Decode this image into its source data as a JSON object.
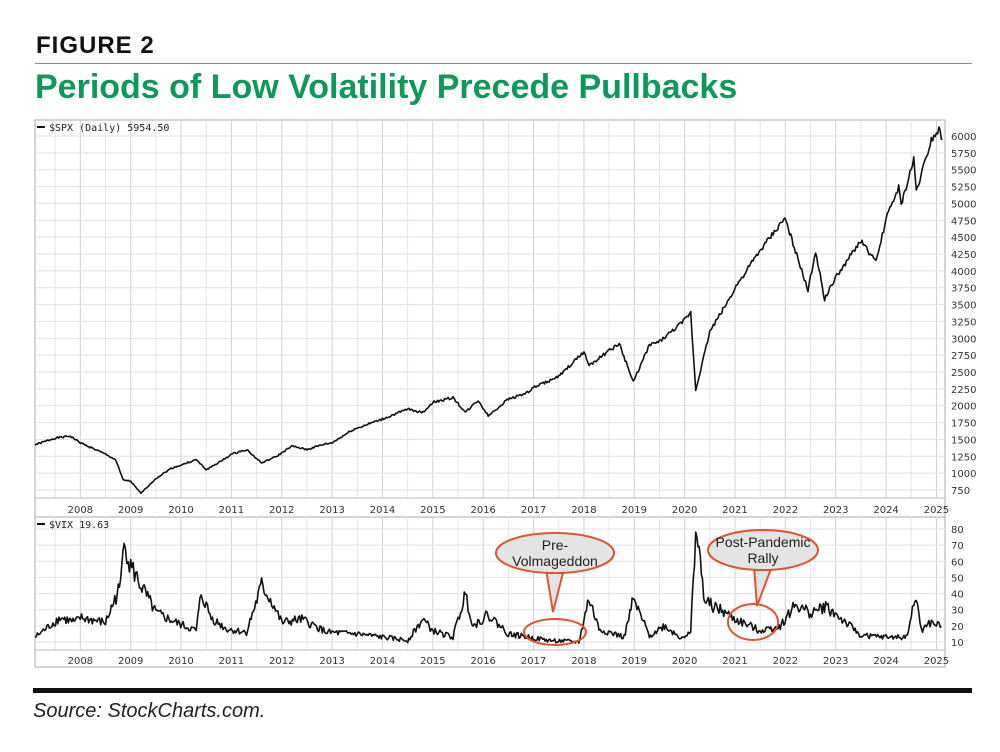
{
  "header": {
    "figure": "FIGURE 2",
    "title": "Periods of Low Volatility Precede Pullbacks"
  },
  "source": "Source: StockCharts.com.",
  "chart_data": [
    {
      "type": "line",
      "legend": "$SPX (Daily) 5954.50",
      "x_ticks": [
        "2008",
        "2009",
        "2010",
        "2011",
        "2012",
        "2013",
        "2014",
        "2015",
        "2016",
        "2017",
        "2018",
        "2019",
        "2020",
        "2021",
        "2022",
        "2023",
        "2024",
        "2025"
      ],
      "y_ticks": [
        750,
        1000,
        1250,
        1500,
        1750,
        2000,
        2250,
        2500,
        2750,
        3000,
        3250,
        3500,
        3750,
        4000,
        4250,
        4500,
        4750,
        5000,
        5250,
        5500,
        5750,
        6000
      ],
      "xlim": [
        2007.1,
        2025.17
      ],
      "ylim": [
        600,
        6200
      ],
      "grid": true,
      "line_color": "#111111",
      "points": [
        [
          2007.1,
          1420
        ],
        [
          2007.5,
          1520
        ],
        [
          2007.8,
          1550
        ],
        [
          2008.0,
          1450
        ],
        [
          2008.3,
          1350
        ],
        [
          2008.5,
          1280
        ],
        [
          2008.7,
          1200
        ],
        [
          2008.85,
          900
        ],
        [
          2009.0,
          880
        ],
        [
          2009.2,
          700
        ],
        [
          2009.5,
          920
        ],
        [
          2009.8,
          1070
        ],
        [
          2010.0,
          1120
        ],
        [
          2010.3,
          1200
        ],
        [
          2010.5,
          1050
        ],
        [
          2010.8,
          1180
        ],
        [
          2011.0,
          1280
        ],
        [
          2011.3,
          1350
        ],
        [
          2011.6,
          1150
        ],
        [
          2011.9,
          1250
        ],
        [
          2012.2,
          1400
        ],
        [
          2012.5,
          1350
        ],
        [
          2012.8,
          1420
        ],
        [
          2013.0,
          1450
        ],
        [
          2013.4,
          1640
        ],
        [
          2013.8,
          1750
        ],
        [
          2014.0,
          1800
        ],
        [
          2014.5,
          1950
        ],
        [
          2014.8,
          1900
        ],
        [
          2015.0,
          2050
        ],
        [
          2015.4,
          2120
        ],
        [
          2015.65,
          1900
        ],
        [
          2015.9,
          2080
        ],
        [
          2016.1,
          1850
        ],
        [
          2016.5,
          2100
        ],
        [
          2016.9,
          2200
        ],
        [
          2017.0,
          2270
        ],
        [
          2017.5,
          2430
        ],
        [
          2018.0,
          2800
        ],
        [
          2018.1,
          2600
        ],
        [
          2018.7,
          2920
        ],
        [
          2018.98,
          2350
        ],
        [
          2019.3,
          2900
        ],
        [
          2019.5,
          2950
        ],
        [
          2019.95,
          3230
        ],
        [
          2020.12,
          3380
        ],
        [
          2020.22,
          2230
        ],
        [
          2020.5,
          3100
        ],
        [
          2020.9,
          3600
        ],
        [
          2021.0,
          3750
        ],
        [
          2021.5,
          4300
        ],
        [
          2021.99,
          4780
        ],
        [
          2022.2,
          4300
        ],
        [
          2022.45,
          3700
        ],
        [
          2022.6,
          4300
        ],
        [
          2022.78,
          3580
        ],
        [
          2023.0,
          3900
        ],
        [
          2023.5,
          4450
        ],
        [
          2023.8,
          4120
        ],
        [
          2024.0,
          4770
        ],
        [
          2024.25,
          5250
        ],
        [
          2024.3,
          4970
        ],
        [
          2024.55,
          5650
        ],
        [
          2024.6,
          5180
        ],
        [
          2024.9,
          5950
        ],
        [
          2025.05,
          6100
        ],
        [
          2025.12,
          5954.5
        ]
      ]
    },
    {
      "type": "line",
      "legend": "$VIX 19.63",
      "x_ticks": [
        "2008",
        "2009",
        "2010",
        "2011",
        "2012",
        "2013",
        "2014",
        "2015",
        "2016",
        "2017",
        "2018",
        "2019",
        "2020",
        "2021",
        "2022",
        "2023",
        "2024",
        "2025"
      ],
      "y_ticks": [
        10,
        20,
        30,
        40,
        50,
        60,
        70,
        80
      ],
      "xlim": [
        2007.1,
        2025.17
      ],
      "ylim": [
        5,
        85
      ],
      "grid": true,
      "line_color": "#111111",
      "points": [
        [
          2007.1,
          13
        ],
        [
          2007.6,
          25
        ],
        [
          2007.9,
          22
        ],
        [
          2008.0,
          25
        ],
        [
          2008.5,
          22
        ],
        [
          2008.8,
          45
        ],
        [
          2008.87,
          80
        ],
        [
          2008.95,
          60
        ],
        [
          2009.2,
          45
        ],
        [
          2009.5,
          28
        ],
        [
          2009.9,
          22
        ],
        [
          2010.3,
          17
        ],
        [
          2010.4,
          40
        ],
        [
          2010.6,
          25
        ],
        [
          2010.9,
          18
        ],
        [
          2011.3,
          16
        ],
        [
          2011.6,
          45
        ],
        [
          2011.8,
          35
        ],
        [
          2012.0,
          22
        ],
        [
          2012.4,
          24
        ],
        [
          2012.9,
          16
        ],
        [
          2013.5,
          15
        ],
        [
          2014.0,
          13
        ],
        [
          2014.5,
          11
        ],
        [
          2014.8,
          24
        ],
        [
          2015.0,
          17
        ],
        [
          2015.4,
          13
        ],
        [
          2015.65,
          40
        ],
        [
          2015.8,
          20
        ],
        [
          2016.1,
          27
        ],
        [
          2016.5,
          15
        ],
        [
          2016.9,
          13
        ],
        [
          2017.3,
          11
        ],
        [
          2017.9,
          10
        ],
        [
          2018.1,
          37
        ],
        [
          2018.3,
          18
        ],
        [
          2018.8,
          13
        ],
        [
          2018.98,
          36
        ],
        [
          2019.3,
          14
        ],
        [
          2019.6,
          20
        ],
        [
          2019.9,
          13
        ],
        [
          2020.12,
          15
        ],
        [
          2020.22,
          82
        ],
        [
          2020.4,
          35
        ],
        [
          2020.8,
          28
        ],
        [
          2021.0,
          24
        ],
        [
          2021.5,
          17
        ],
        [
          2021.9,
          20
        ],
        [
          2022.2,
          33
        ],
        [
          2022.5,
          28
        ],
        [
          2022.8,
          32
        ],
        [
          2023.2,
          22
        ],
        [
          2023.5,
          14
        ],
        [
          2024.0,
          13
        ],
        [
          2024.4,
          13
        ],
        [
          2024.6,
          38
        ],
        [
          2024.7,
          17
        ],
        [
          2024.9,
          22
        ],
        [
          2025.1,
          19.63
        ]
      ],
      "annotations": [
        {
          "text": [
            "Pre-",
            "Volmageddon"
          ],
          "period": [
            2016.9,
            2018.0
          ]
        },
        {
          "text": [
            "Post-Pandemic",
            "Rally"
          ],
          "period": [
            2021.0,
            2021.8
          ]
        }
      ],
      "annotation_color": "#e0532e"
    }
  ]
}
